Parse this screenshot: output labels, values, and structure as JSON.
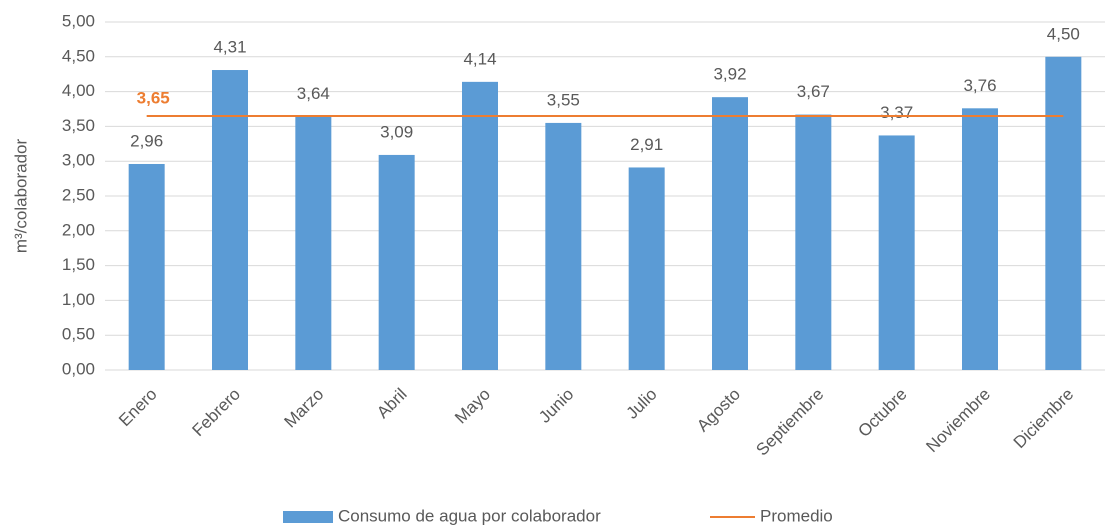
{
  "chart_data": {
    "type": "bar",
    "y_label": "m³/colaborador",
    "categories": [
      "Enero",
      "Febrero",
      "Marzo",
      "Abril",
      "Mayo",
      "Junio",
      "Julio",
      "Agosto",
      "Septiembre",
      "Octubre",
      "Noviembre",
      "Diciembre"
    ],
    "series": [
      {
        "name": "Consumo de agua por colaborador",
        "color": "#5b9bd5",
        "values": [
          2.96,
          4.31,
          3.64,
          3.09,
          4.14,
          3.55,
          2.91,
          3.92,
          3.67,
          3.37,
          3.76,
          4.5
        ],
        "value_labels": [
          "2,96",
          "4,31",
          "3,64",
          "3,09",
          "4,14",
          "3,55",
          "2,91",
          "3,92",
          "3,67",
          "3,37",
          "3,76",
          "4,50"
        ]
      }
    ],
    "reference_line": {
      "name": "Promedio",
      "color": "#ed7d31",
      "value": 3.65,
      "value_label": "3,65"
    },
    "ylim": [
      0,
      5
    ],
    "yticks": [
      {
        "value": 0,
        "label": "0,00"
      },
      {
        "value": 0.5,
        "label": "0,50"
      },
      {
        "value": 1,
        "label": "1,00"
      },
      {
        "value": 1.5,
        "label": "1,50"
      },
      {
        "value": 2,
        "label": "2,00"
      },
      {
        "value": 2.5,
        "label": "2,50"
      },
      {
        "value": 3,
        "label": "3,00"
      },
      {
        "value": 3.5,
        "label": "3,50"
      },
      {
        "value": 4,
        "label": "4,00"
      },
      {
        "value": 4.5,
        "label": "4,50"
      },
      {
        "value": 5,
        "label": "5,00"
      }
    ],
    "grid": true,
    "legend": "bottom"
  }
}
